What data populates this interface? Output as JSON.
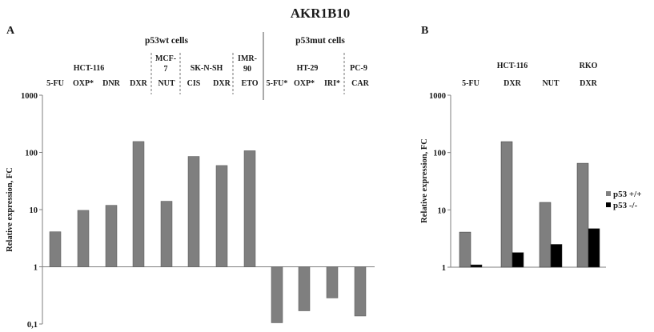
{
  "figure_title": "AKR1B10",
  "panels": {
    "a_label": "A",
    "b_label": "B"
  },
  "colors": {
    "wt_bar": "#7f7f7f",
    "ko_bar": "#000000",
    "axis": "#7f7f7f"
  },
  "chart_data": [
    {
      "type": "bar",
      "panel": "A",
      "ylabel": "Relative expression, FC",
      "yscale": "log",
      "ylim": [
        0.1,
        1000
      ],
      "yticks": [
        "0,1",
        "1",
        "10",
        "100",
        "1000"
      ],
      "group_labels": {
        "left": "p53wt cells",
        "right": "p53mut cells"
      },
      "cell_lines": [
        "HCT-116",
        "MCF-7",
        "SK-N-SH",
        "IMR-90",
        "HT-29",
        "PC-9"
      ],
      "mcf7_lines": [
        "MCF-",
        "7"
      ],
      "imr90_lines": [
        "IMR-",
        "90"
      ],
      "categories": [
        "5-FU",
        "OXP*",
        "DNR",
        "DXR",
        "NUT",
        "CIS",
        "DXR",
        "ETO",
        "5-FU*",
        "OXP*",
        "IRI*",
        "CAR"
      ],
      "values": [
        4.1,
        9.7,
        11.9,
        155,
        14,
        85,
        59,
        107,
        0.105,
        0.17,
        0.285,
        0.138
      ]
    },
    {
      "type": "bar",
      "panel": "B",
      "ylabel": "Relative expression, FC",
      "yscale": "log",
      "ylim": [
        1,
        1000
      ],
      "yticks": [
        "1",
        "10",
        "100",
        "1000"
      ],
      "cell_lines": [
        "HCT-116",
        "RKO"
      ],
      "categories": [
        "5-FU",
        "DXR",
        "NUT",
        "DXR"
      ],
      "series": [
        {
          "name": "p53 +/+",
          "values": [
            4.1,
            155,
            13.5,
            65
          ]
        },
        {
          "name": "p53 -/-",
          "values": [
            1.1,
            1.8,
            2.5,
            4.7
          ]
        }
      ],
      "legend": "right"
    }
  ]
}
